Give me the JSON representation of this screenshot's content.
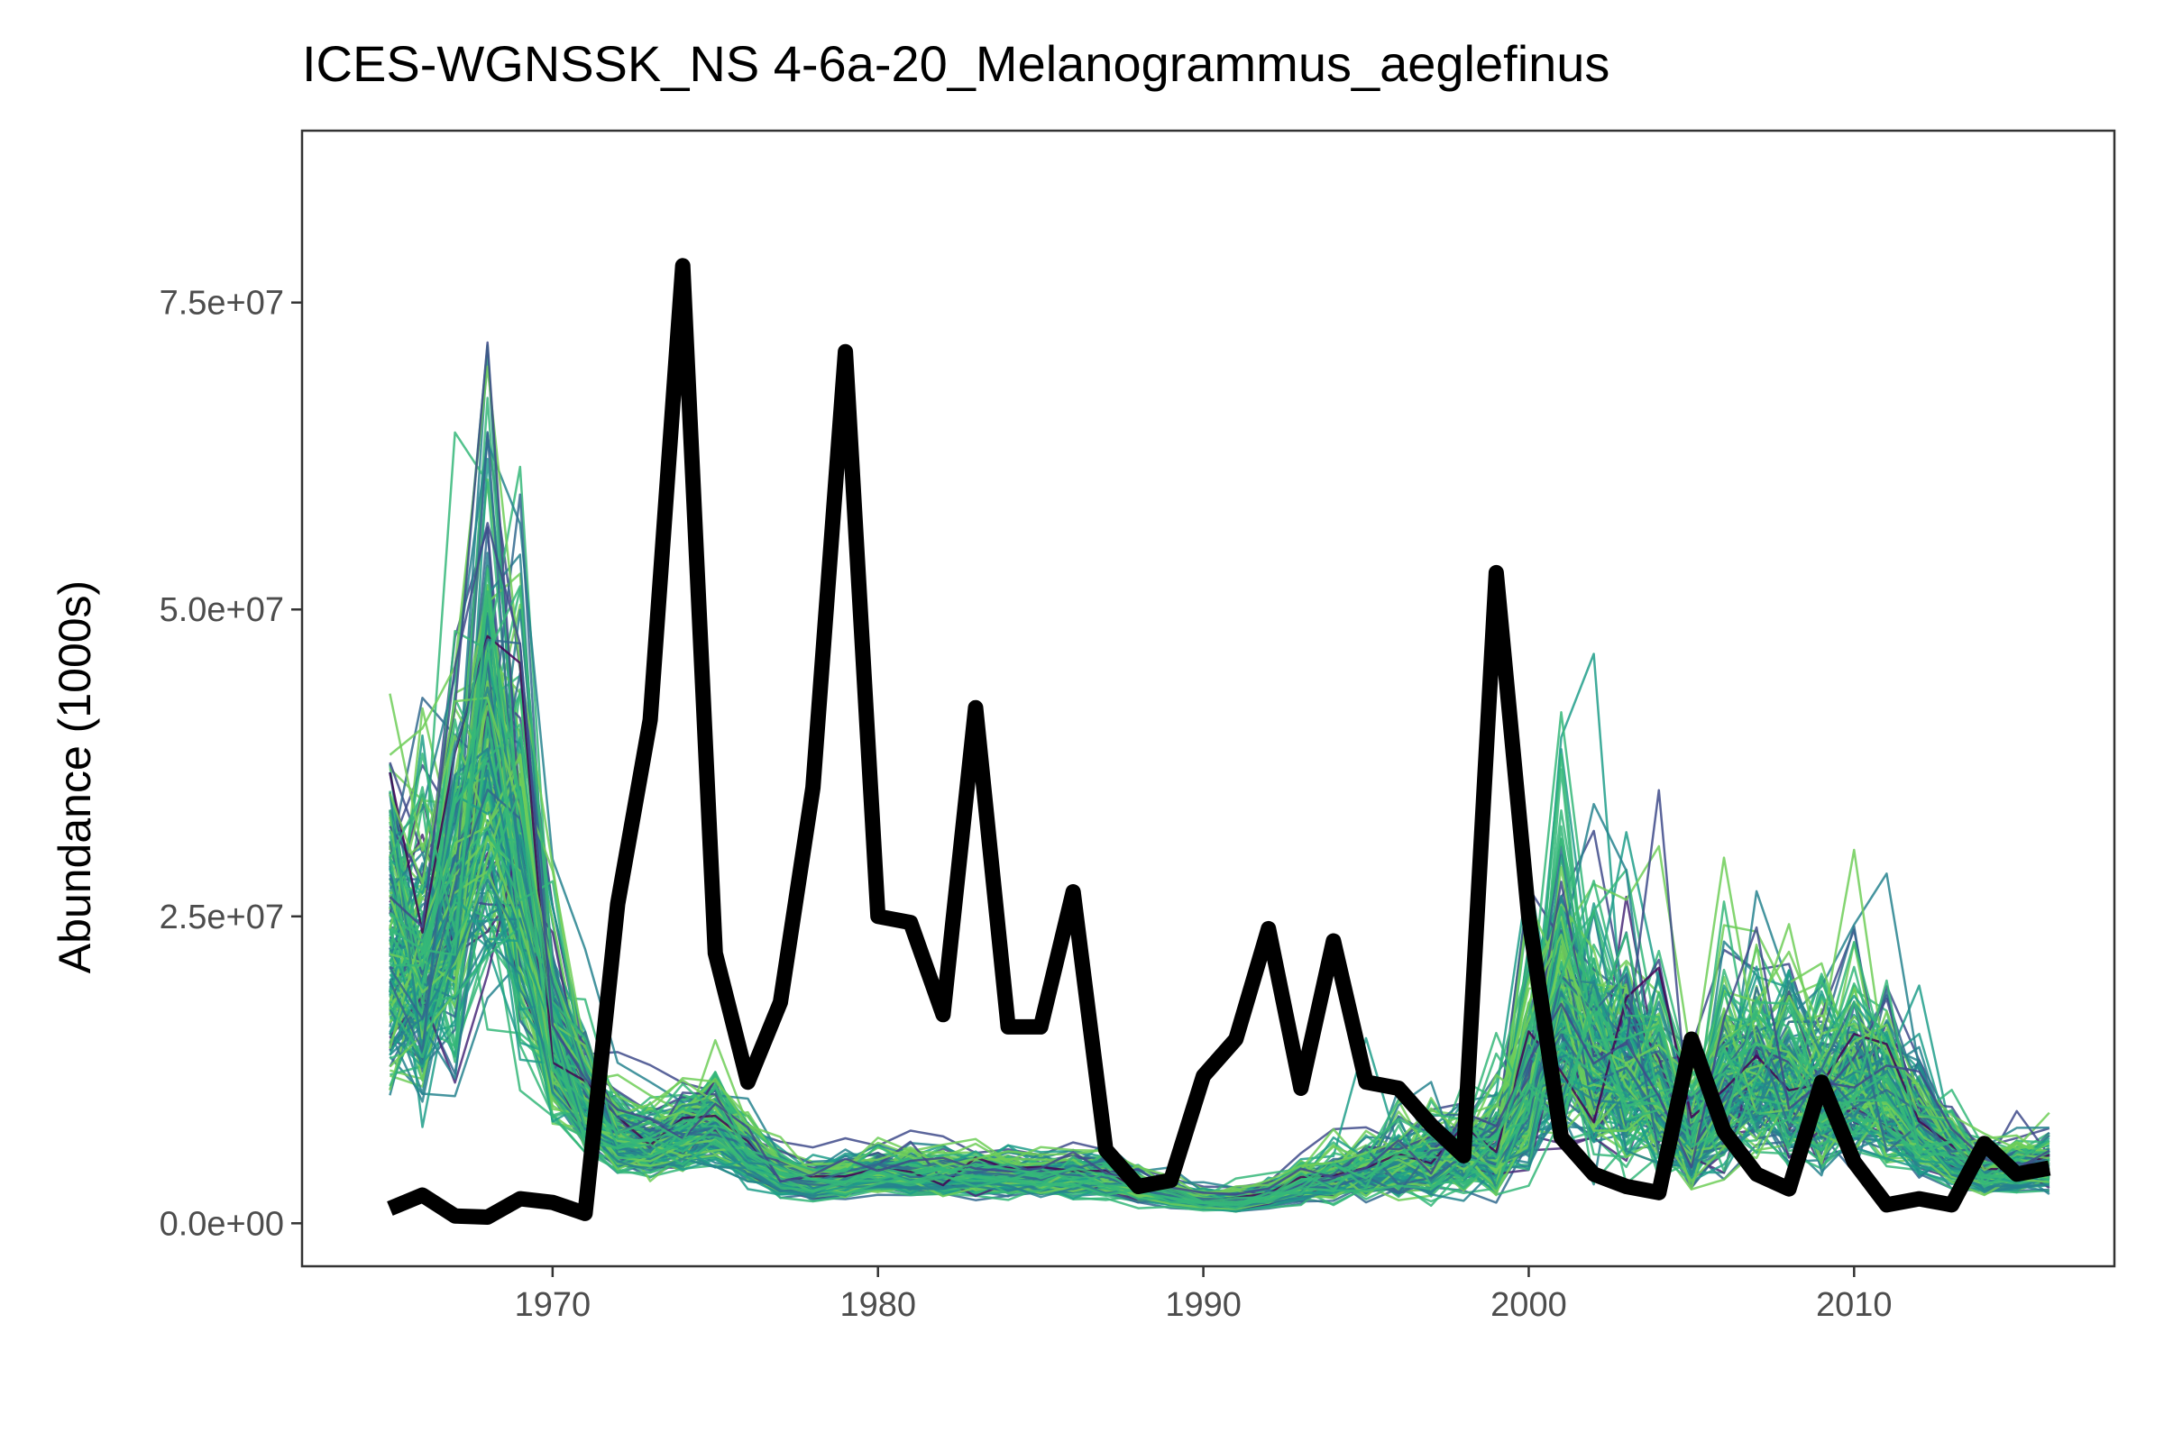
{
  "chart_data": {
    "type": "line",
    "title": "ICES-WGNSSK_NS  4-6a-20_Melanogrammus_aeglefinus",
    "xlabel": "",
    "ylabel": "Abundance (1000s)",
    "xlim": [
      1962.3,
      2018.0
    ],
    "ylim": [
      -3500000,
      89000000
    ],
    "x_ticks": [
      1970,
      1980,
      1990,
      2000,
      2010
    ],
    "x_tick_labels": [
      "1970",
      "1980",
      "1990",
      "2000",
      "2010"
    ],
    "y_ticks": [
      0,
      25000000,
      50000000,
      75000000
    ],
    "y_tick_labels": [
      "0.0e+00",
      "2.5e+07",
      "5.0e+07",
      "7.5e+07"
    ],
    "grid": false,
    "legend": "none",
    "main_series_color": "#000000",
    "ensemble_palette": [
      "#440154",
      "#482878",
      "#3e4a89",
      "#31688e",
      "#26828e",
      "#1f9e89",
      "#35b779",
      "#6ece58"
    ],
    "ensemble_count": 180,
    "x": [
      1965,
      1966,
      1967,
      1968,
      1969,
      1970,
      1971,
      1972,
      1973,
      1974,
      1975,
      1976,
      1977,
      1978,
      1979,
      1980,
      1981,
      1982,
      1983,
      1984,
      1985,
      1986,
      1987,
      1988,
      1989,
      1990,
      1991,
      1992,
      1993,
      1994,
      1995,
      1996,
      1997,
      1998,
      1999,
      2000,
      2001,
      2002,
      2003,
      2004,
      2005,
      2006,
      2007,
      2008,
      2009,
      2010,
      2011,
      2012,
      2013,
      2014,
      2015,
      2016
    ],
    "series": [
      {
        "values": [
          1200000,
          2300000,
          600000,
          500000,
          2000000,
          1700000,
          800000,
          26000000,
          41000000,
          78000000,
          22000000,
          11500000,
          18000000,
          35500000,
          71000000,
          25000000,
          24500000,
          17000000,
          42000000,
          16000000,
          16000000,
          27000000,
          6000000,
          3000000,
          3500000,
          12000000,
          15000000,
          24000000,
          11000000,
          23000000,
          11500000,
          11000000,
          8000000,
          5500000,
          53000000,
          25000000,
          7000000,
          4000000,
          3000000,
          2500000,
          15000000,
          7500000,
          4000000,
          2800000,
          11500000,
          5000000,
          1500000,
          2000000,
          1500000,
          6500000,
          4000000,
          4500000
        ]
      }
    ],
    "ensemble_base": [
      22000000,
      21000000,
      27000000,
      37000000,
      28000000,
      15000000,
      9500000,
      7000000,
      6500000,
      7000000,
      8000000,
      5500000,
      3800000,
      3200000,
      3500000,
      4000000,
      4000000,
      4000000,
      3800000,
      3800000,
      3600000,
      3700000,
      3600000,
      2800000,
      2300000,
      1800000,
      1700000,
      2200000,
      3000000,
      3600000,
      4200000,
      4600000,
      5000000,
      5400000,
      5800000,
      10500000,
      16000000,
      14000000,
      12500000,
      10500000,
      6500000,
      10500000,
      11500000,
      11000000,
      9500000,
      11000000,
      10500000,
      7500000,
      5500000,
      4000000,
      4500000,
      4800000
    ],
    "ensemble_spread": [
      0.4,
      0.38,
      0.45,
      0.42,
      0.4,
      0.3,
      0.26,
      0.24,
      0.24,
      0.25,
      0.26,
      0.22,
      0.2,
      0.2,
      0.2,
      0.22,
      0.22,
      0.22,
      0.22,
      0.22,
      0.22,
      0.25,
      0.25,
      0.22,
      0.2,
      0.2,
      0.22,
      0.25,
      0.3,
      0.35,
      0.42,
      0.46,
      0.5,
      0.52,
      0.55,
      0.6,
      0.58,
      0.58,
      0.55,
      0.55,
      0.55,
      0.5,
      0.5,
      0.5,
      0.48,
      0.48,
      0.45,
      0.4,
      0.3,
      0.25,
      0.28,
      0.25
    ]
  }
}
